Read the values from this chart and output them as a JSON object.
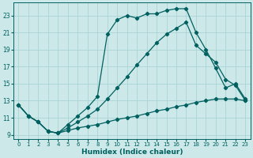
{
  "bg_color": "#cce8e8",
  "grid_color": "#aad4d4",
  "line_color": "#006060",
  "xlabel": "Humidex (Indice chaleur)",
  "xlim": [
    -0.5,
    23.5
  ],
  "ylim": [
    8.5,
    24.5
  ],
  "yticks": [
    9,
    11,
    13,
    15,
    17,
    19,
    21,
    23
  ],
  "xticks": [
    0,
    1,
    2,
    3,
    4,
    5,
    6,
    7,
    8,
    9,
    10,
    11,
    12,
    13,
    14,
    15,
    16,
    17,
    18,
    19,
    20,
    21,
    22,
    23
  ],
  "line1_x": [
    0,
    1,
    2,
    3,
    4,
    5,
    6,
    7,
    8,
    9,
    10,
    11,
    12,
    13,
    14,
    15,
    16,
    17,
    18,
    19,
    20,
    21,
    22,
    23
  ],
  "line1_y": [
    12.5,
    11.2,
    10.5,
    9.4,
    9.2,
    10.2,
    11.2,
    12.2,
    13.5,
    20.8,
    22.5,
    23.0,
    22.7,
    23.2,
    23.2,
    23.6,
    23.8,
    23.8,
    21.0,
    19.0,
    16.8,
    14.5,
    15.0,
    13.2
  ],
  "line2_x": [
    0,
    1,
    2,
    3,
    4,
    5,
    6,
    7,
    8,
    9,
    10,
    11,
    12,
    13,
    14,
    15,
    16,
    17,
    18,
    19,
    20,
    21,
    22,
    23
  ],
  "line2_y": [
    12.5,
    11.2,
    10.5,
    9.4,
    9.2,
    9.8,
    10.5,
    11.2,
    12.0,
    13.2,
    14.5,
    15.8,
    17.2,
    18.5,
    19.8,
    20.8,
    21.5,
    22.2,
    19.5,
    18.5,
    17.5,
    15.5,
    14.8,
    13.0
  ],
  "line3_x": [
    0,
    1,
    2,
    3,
    4,
    5,
    6,
    7,
    8,
    9,
    10,
    11,
    12,
    13,
    14,
    15,
    16,
    17,
    18,
    19,
    20,
    21,
    22,
    23
  ],
  "line3_y": [
    12.5,
    11.2,
    10.5,
    9.4,
    9.2,
    9.5,
    9.8,
    10.0,
    10.2,
    10.5,
    10.8,
    11.0,
    11.2,
    11.5,
    11.8,
    12.0,
    12.3,
    12.5,
    12.8,
    13.0,
    13.2,
    13.2,
    13.2,
    13.0
  ]
}
